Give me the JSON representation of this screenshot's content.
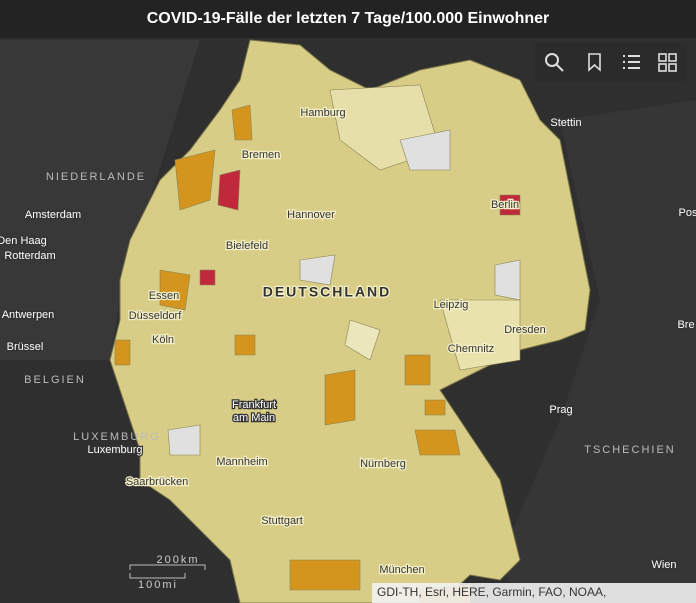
{
  "header": {
    "title": "COVID-19-Fälle der letzten 7 Tage/100.000 Einwohner"
  },
  "map": {
    "country_label": "DEUTSCHLAND",
    "cities": [
      "Hamburg",
      "Bremen",
      "Stettin",
      "Berlin",
      "Hannover",
      "Bielefeld",
      "Essen",
      "Düsseldorf",
      "Köln",
      "Leipzig",
      "Dresden",
      "Chemnitz",
      "Mannheim",
      "Nürnberg",
      "Saarbrücken",
      "Stuttgart",
      "München",
      "Prag",
      "Wien",
      "Amsterdam",
      "Den Haag",
      "Rotterdam",
      "Antwerpen",
      "Brüssel",
      "Luxemburg",
      "Pos",
      "Bre"
    ],
    "frankfurt": [
      "Frankfurt",
      "am Main"
    ],
    "countries": [
      "NIEDERLANDE",
      "BELGIEN",
      "LUXEMBURG",
      "TSCHECHIEN"
    ],
    "scale": {
      "km": "200km",
      "mi": "100mi"
    },
    "attribution": "GDI-TH, Esri, HERE, Garmin, FAO, NOAA,"
  }
}
